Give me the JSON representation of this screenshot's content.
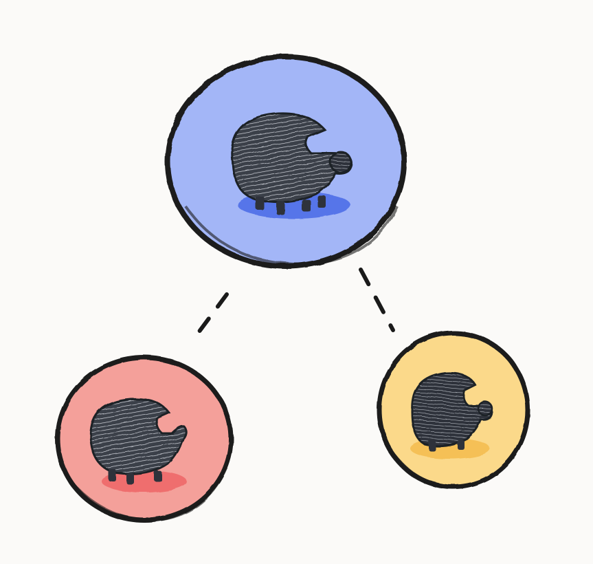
{
  "diagram": {
    "background_color": "#fbfaf8",
    "outline_color": "#1a1a1a",
    "connector_style": "dashed",
    "parent": {
      "id": "parent-node",
      "fill": "#a3b6f7",
      "shadow": "#4a68e6",
      "icon": "creature-icon"
    },
    "children": [
      {
        "id": "child-left",
        "fill": "#f4a09a",
        "shadow": "#ee5d5f",
        "icon": "creature-icon"
      },
      {
        "id": "child-right",
        "fill": "#fbd98a",
        "shadow": "#f4b94a",
        "icon": "creature-icon"
      }
    ]
  }
}
